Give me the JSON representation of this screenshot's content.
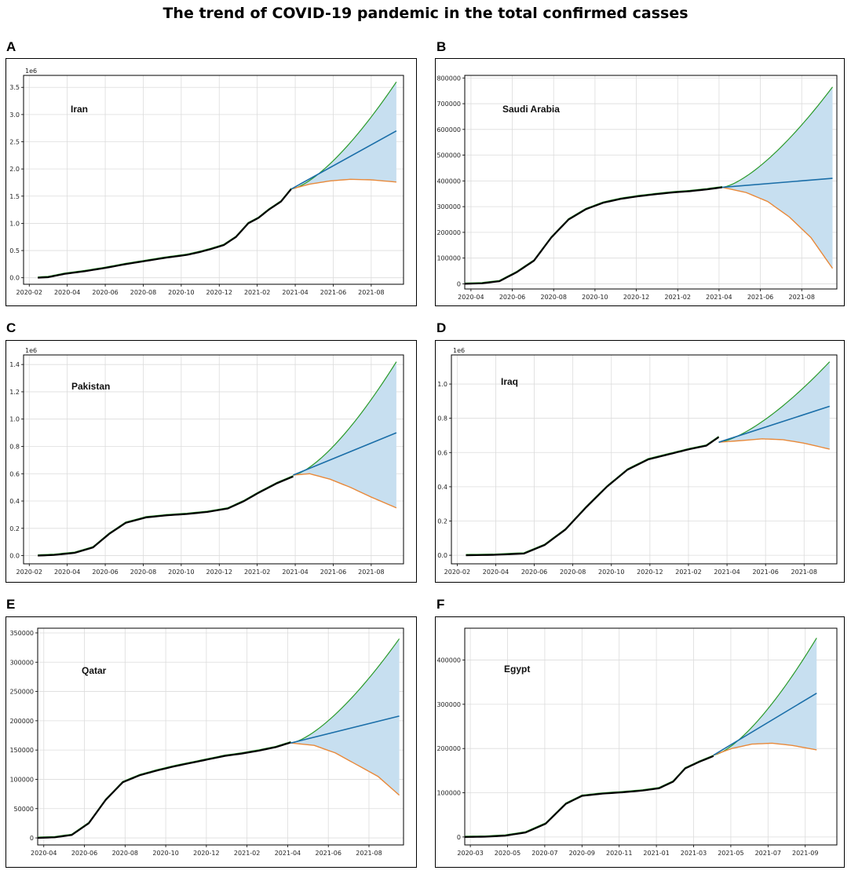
{
  "figure_title": "The trend of COVID-19 pandemic in the total confirmed casses",
  "colors": {
    "fit": "#1a6ea8",
    "upper": "#2a9a2a",
    "lower": "#e8893a",
    "observed": "#000000",
    "band": "#c7dff0",
    "grid": "#dcdcdc"
  },
  "chart_data": [
    {
      "panel": "A",
      "type": "line",
      "country": "Iran",
      "scale_label": "1e6",
      "x_ticks": [
        "2020-02",
        "2020-04",
        "2020-06",
        "2020-08",
        "2020-10",
        "2020-12",
        "2021-02",
        "2021-04",
        "2021-06",
        "2021-08"
      ],
      "x_range": [
        0,
        18.6
      ],
      "y_ticks": [
        0.0,
        0.5,
        1.0,
        1.5,
        2.0,
        2.5,
        3.0,
        3.5
      ],
      "y_tick_labels": [
        "0.0",
        "0.5",
        "1.0",
        "1.5",
        "2.0",
        "2.5",
        "3.0",
        "3.5"
      ],
      "y_range": [
        -0.12,
        3.72
      ],
      "forecast_start": 13.1,
      "forecast_end": 18.25,
      "forecast_start_value": 1.63,
      "central_end": 2.7,
      "upper_end": 3.6,
      "lower_path": [
        [
          13.1,
          1.63
        ],
        [
          14.0,
          1.72
        ],
        [
          15.0,
          1.78
        ],
        [
          16.0,
          1.81
        ],
        [
          17.0,
          1.8
        ],
        [
          18.25,
          1.76
        ]
      ],
      "observed": [
        [
          0.7,
          0.0
        ],
        [
          1.2,
          0.01
        ],
        [
          1.6,
          0.04
        ],
        [
          2.0,
          0.07
        ],
        [
          3.0,
          0.12
        ],
        [
          4.0,
          0.18
        ],
        [
          5.0,
          0.25
        ],
        [
          6.0,
          0.31
        ],
        [
          7.0,
          0.37
        ],
        [
          8.0,
          0.42
        ],
        [
          8.6,
          0.47
        ],
        [
          9.2,
          0.53
        ],
        [
          9.8,
          0.6
        ],
        [
          10.4,
          0.75
        ],
        [
          11.0,
          1.0
        ],
        [
          11.5,
          1.1
        ],
        [
          12.0,
          1.25
        ],
        [
          12.6,
          1.4
        ],
        [
          13.1,
          1.63
        ]
      ]
    },
    {
      "panel": "B",
      "type": "line",
      "country": "Saudi Arabia",
      "scale_label": "",
      "x_ticks": [
        "2020-04",
        "2020-06",
        "2020-08",
        "2020-10",
        "2020-12",
        "2021-02",
        "2021-04",
        "2021-06",
        "2021-08"
      ],
      "x_range": [
        0,
        17.2
      ],
      "y_ticks": [
        0,
        100000,
        200000,
        300000,
        400000,
        500000,
        600000,
        700000,
        800000
      ],
      "y_tick_labels": [
        "0",
        "100000",
        "200000",
        "300000",
        "400000",
        "500000",
        "600000",
        "700000",
        "800000"
      ],
      "y_range": [
        -20000,
        810000
      ],
      "forecast_start": 11.9,
      "forecast_end": 17.0,
      "forecast_start_value": 375000,
      "central_end": 410000,
      "upper_end": 765000,
      "lower_path": [
        [
          11.9,
          375000
        ],
        [
          13.0,
          355000
        ],
        [
          14.0,
          320000
        ],
        [
          15.0,
          260000
        ],
        [
          16.0,
          180000
        ],
        [
          17.0,
          60000
        ]
      ],
      "observed": [
        [
          0.0,
          0
        ],
        [
          0.8,
          2000
        ],
        [
          1.6,
          10000
        ],
        [
          2.4,
          45000
        ],
        [
          3.2,
          90000
        ],
        [
          4.0,
          180000
        ],
        [
          4.8,
          250000
        ],
        [
          5.6,
          290000
        ],
        [
          6.4,
          315000
        ],
        [
          7.2,
          330000
        ],
        [
          8.0,
          340000
        ],
        [
          8.8,
          348000
        ],
        [
          9.6,
          355000
        ],
        [
          10.4,
          360000
        ],
        [
          11.2,
          367000
        ],
        [
          11.9,
          375000
        ]
      ]
    },
    {
      "panel": "C",
      "type": "line",
      "country": "Pakistan",
      "scale_label": "1e6",
      "x_ticks": [
        "2020-02",
        "2020-04",
        "2020-06",
        "2020-08",
        "2020-10",
        "2020-12",
        "2021-02",
        "2021-04",
        "2021-06",
        "2021-08"
      ],
      "x_range": [
        0,
        18.6
      ],
      "y_ticks": [
        0.0,
        0.2,
        0.4,
        0.6,
        0.8,
        1.0,
        1.2,
        1.4
      ],
      "y_tick_labels": [
        "0.0",
        "0.2",
        "0.4",
        "0.6",
        "0.8",
        "1.0",
        "1.2",
        "1.4"
      ],
      "y_range": [
        -0.06,
        1.47
      ],
      "forecast_start": 13.2,
      "forecast_end": 18.25,
      "forecast_start_value": 0.59,
      "central_end": 0.9,
      "upper_end": 1.42,
      "lower_path": [
        [
          13.2,
          0.59
        ],
        [
          14.0,
          0.6
        ],
        [
          15.0,
          0.56
        ],
        [
          16.0,
          0.5
        ],
        [
          17.0,
          0.43
        ],
        [
          18.25,
          0.35
        ]
      ],
      "observed": [
        [
          0.7,
          0.0
        ],
        [
          1.5,
          0.005
        ],
        [
          2.5,
          0.02
        ],
        [
          3.4,
          0.06
        ],
        [
          4.2,
          0.16
        ],
        [
          5.0,
          0.24
        ],
        [
          6.0,
          0.28
        ],
        [
          7.0,
          0.295
        ],
        [
          8.0,
          0.305
        ],
        [
          9.0,
          0.32
        ],
        [
          10.0,
          0.345
        ],
        [
          10.8,
          0.4
        ],
        [
          11.5,
          0.46
        ],
        [
          12.4,
          0.53
        ],
        [
          13.2,
          0.58
        ]
      ]
    },
    {
      "panel": "D",
      "type": "line",
      "country": "Iraq",
      "scale_label": "1e6",
      "x_ticks": [
        "2020-02",
        "2020-04",
        "2020-06",
        "2020-08",
        "2020-10",
        "2020-12",
        "2021-02",
        "2021-04",
        "2021-06",
        "2021-08"
      ],
      "x_range": [
        0,
        18.6
      ],
      "y_ticks": [
        0.0,
        0.2,
        0.4,
        0.6,
        0.8,
        1.0
      ],
      "y_tick_labels": [
        "0.0",
        "0.2",
        "0.4",
        "0.6",
        "0.8",
        "1.0"
      ],
      "y_range": [
        -0.05,
        1.17
      ],
      "forecast_start": 12.9,
      "forecast_end": 18.25,
      "forecast_start_value": 0.66,
      "central_end": 0.87,
      "upper_end": 1.13,
      "lower_path": [
        [
          12.9,
          0.66
        ],
        [
          14.0,
          0.67
        ],
        [
          15.0,
          0.68
        ],
        [
          16.0,
          0.675
        ],
        [
          17.0,
          0.655
        ],
        [
          18.25,
          0.62
        ]
      ],
      "observed": [
        [
          0.7,
          0.0
        ],
        [
          2.0,
          0.002
        ],
        [
          3.5,
          0.01
        ],
        [
          4.5,
          0.06
        ],
        [
          5.5,
          0.15
        ],
        [
          6.5,
          0.28
        ],
        [
          7.5,
          0.4
        ],
        [
          8.5,
          0.5
        ],
        [
          9.5,
          0.56
        ],
        [
          10.5,
          0.59
        ],
        [
          11.5,
          0.62
        ],
        [
          12.3,
          0.64
        ],
        [
          12.9,
          0.69
        ]
      ]
    },
    {
      "panel": "E",
      "type": "line",
      "country": "Qatar",
      "scale_label": "",
      "x_ticks": [
        "2020-04",
        "2020-06",
        "2020-08",
        "2020-10",
        "2020-12",
        "2021-02",
        "2021-04",
        "2021-06",
        "2021-08"
      ],
      "x_range": [
        0,
        17.2
      ],
      "y_ticks": [
        0,
        50000,
        100000,
        150000,
        200000,
        250000,
        300000,
        350000
      ],
      "y_tick_labels": [
        "0",
        "50000",
        "100000",
        "150000",
        "200000",
        "250000",
        "300000",
        "350000"
      ],
      "y_range": [
        -12000,
        358000
      ],
      "forecast_start": 11.9,
      "forecast_end": 17.0,
      "forecast_start_value": 162000,
      "central_end": 208000,
      "upper_end": 340000,
      "lower_path": [
        [
          11.9,
          162000
        ],
        [
          13.0,
          158000
        ],
        [
          14.0,
          145000
        ],
        [
          15.0,
          125000
        ],
        [
          16.0,
          105000
        ],
        [
          17.0,
          73000
        ]
      ],
      "observed": [
        [
          0.0,
          0
        ],
        [
          0.8,
          1000
        ],
        [
          1.6,
          5000
        ],
        [
          2.4,
          25000
        ],
        [
          3.2,
          65000
        ],
        [
          4.0,
          95000
        ],
        [
          4.8,
          107000
        ],
        [
          5.6,
          115000
        ],
        [
          6.4,
          122000
        ],
        [
          7.2,
          128000
        ],
        [
          8.0,
          134000
        ],
        [
          8.8,
          140000
        ],
        [
          9.6,
          144000
        ],
        [
          10.4,
          149000
        ],
        [
          11.2,
          155000
        ],
        [
          11.9,
          163000
        ]
      ]
    },
    {
      "panel": "F",
      "type": "line",
      "country": "Egypt",
      "scale_label": "",
      "x_ticks": [
        "2020-03",
        "2020-05",
        "2020-07",
        "2020-09",
        "2020-11",
        "2021-01",
        "2021-03",
        "2021-05",
        "2021-07",
        "2021-09"
      ],
      "x_range": [
        0,
        18.4
      ],
      "y_ticks": [
        0,
        100000,
        200000,
        300000,
        400000
      ],
      "y_tick_labels": [
        "0",
        "100000",
        "200000",
        "300000",
        "400000"
      ],
      "y_range": [
        -18000,
        472000
      ],
      "forecast_start": 12.3,
      "forecast_end": 17.4,
      "forecast_start_value": 185000,
      "central_end": 325000,
      "upper_end": 450000,
      "lower_path": [
        [
          12.3,
          185000
        ],
        [
          13.2,
          200000
        ],
        [
          14.2,
          210000
        ],
        [
          15.2,
          212000
        ],
        [
          16.2,
          207000
        ],
        [
          17.4,
          197000
        ]
      ],
      "observed": [
        [
          0.0,
          0
        ],
        [
          1.0,
          500
        ],
        [
          2.0,
          3000
        ],
        [
          3.0,
          10000
        ],
        [
          4.0,
          30000
        ],
        [
          5.0,
          75000
        ],
        [
          5.8,
          93000
        ],
        [
          6.8,
          98000
        ],
        [
          7.8,
          101000
        ],
        [
          8.8,
          105000
        ],
        [
          9.6,
          110000
        ],
        [
          10.3,
          125000
        ],
        [
          10.9,
          155000
        ],
        [
          11.6,
          170000
        ],
        [
          12.3,
          183000
        ]
      ]
    }
  ]
}
